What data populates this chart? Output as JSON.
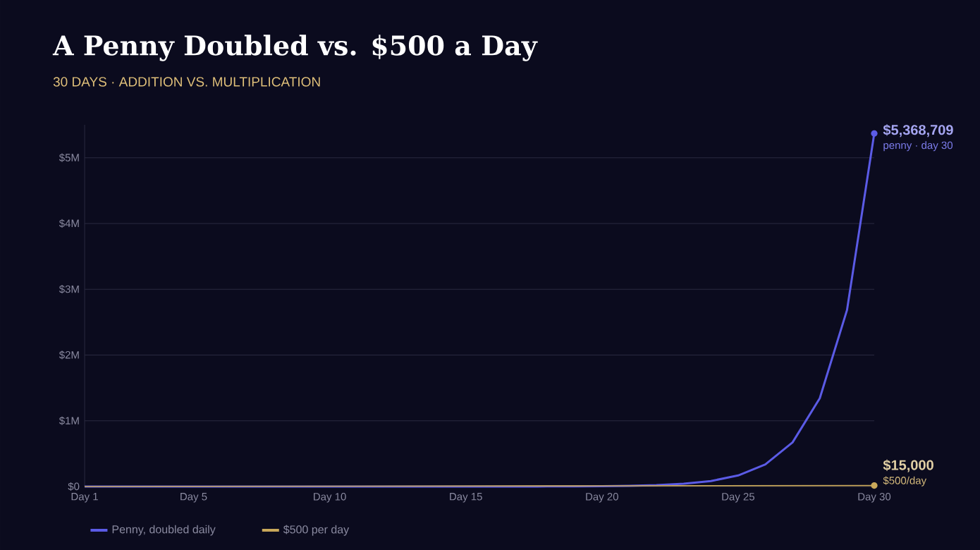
{
  "chart_data": {
    "type": "line",
    "title": "A Penny Doubled vs. $500 a Day",
    "subtitle": "30 DAYS · ADDITION VS. MULTIPLICATION",
    "categories": [
      "Day 1",
      null,
      null,
      null,
      "Day 5",
      null,
      null,
      null,
      null,
      "Day 10",
      null,
      null,
      null,
      null,
      "Day 15",
      null,
      null,
      null,
      null,
      "Day 20",
      null,
      null,
      null,
      null,
      "Day 25",
      null,
      null,
      null,
      null,
      "Day 30"
    ],
    "series": [
      {
        "name": "Penny, doubled daily",
        "color": "#5b5be6",
        "values": [
          0.01,
          0.02,
          0.04,
          0.08,
          0.16,
          0.32,
          0.64,
          1.28,
          2.56,
          5.12,
          10.24,
          20.48,
          40.96,
          81.92,
          163.84,
          327.68,
          655.36,
          1310.72,
          2621.44,
          5242.88,
          10485.76,
          20971.52,
          41943.04,
          83886.08,
          167772.16,
          335544.32,
          671088.64,
          1342177.28,
          2684354.56,
          5368709.12
        ]
      },
      {
        "name": "$500 per day",
        "color": "#c9a85a",
        "values": [
          500,
          1000,
          1500,
          2000,
          2500,
          3000,
          3500,
          4000,
          4500,
          5000,
          5500,
          6000,
          6500,
          7000,
          7500,
          8000,
          8500,
          9000,
          9500,
          10000,
          10500,
          11000,
          11500,
          12000,
          12500,
          13000,
          13500,
          14000,
          14500,
          15000
        ]
      }
    ],
    "ylim": [
      0,
      5500000
    ],
    "yticks": [
      {
        "value": 0,
        "label": "$0"
      },
      {
        "value": 1000000,
        "label": "$1M"
      },
      {
        "value": 2000000,
        "label": "$2M"
      },
      {
        "value": 3000000,
        "label": "$3M"
      },
      {
        "value": 4000000,
        "label": "$4M"
      },
      {
        "value": 5000000,
        "label": "$5M"
      }
    ],
    "annotations": [
      {
        "text": "$5,368,709",
        "x": "Day 30",
        "y": 5368709
      },
      {
        "text": "penny · day 30",
        "x": "Day 30",
        "y": 5368709
      },
      {
        "text": "$15,000",
        "x": "Day 30",
        "y": 15000
      },
      {
        "text": "$500/day",
        "x": "Day 30",
        "y": 15000
      }
    ],
    "grid": "y",
    "legend": "bottom left",
    "marker": "none",
    "line_style": "solid"
  }
}
